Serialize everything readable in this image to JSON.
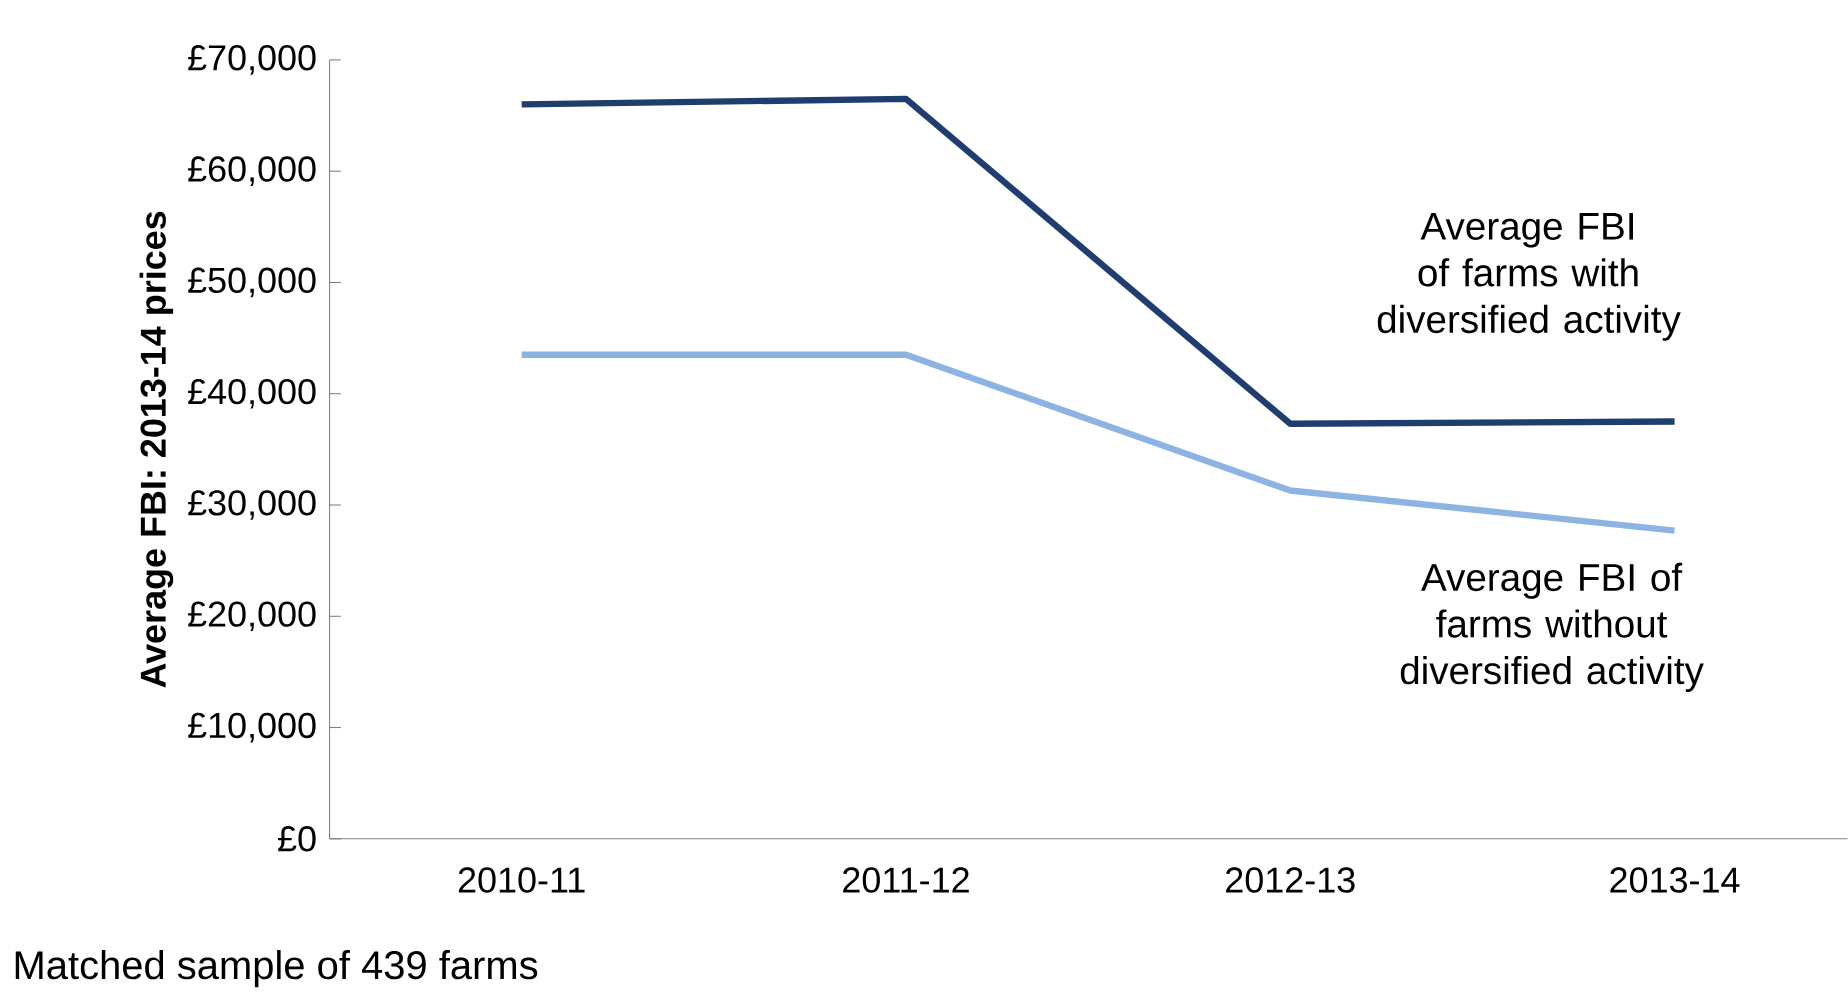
{
  "chart_data": {
    "type": "line",
    "ylabel": "Average FBI: 2013-14 prices",
    "categories": [
      "2010-11",
      "2011-12",
      "2012-13",
      "2013-14"
    ],
    "series": [
      {
        "name": "Average FBI of farms with diversified activity",
        "color": "#1f3d6e",
        "values": [
          66000,
          66500,
          37300,
          37500
        ]
      },
      {
        "name": "Average FBI of farms without diversified activity",
        "color": "#8db3e2",
        "values": [
          43500,
          43500,
          31300,
          27700
        ]
      }
    ],
    "ylim": [
      0,
      70000
    ],
    "yticks": [
      {
        "value": 0,
        "label": "£0"
      },
      {
        "value": 10000,
        "label": "£10,000"
      },
      {
        "value": 20000,
        "label": "£20,000"
      },
      {
        "value": 30000,
        "label": "£30,000"
      },
      {
        "value": 40000,
        "label": "£40,000"
      },
      {
        "value": 50000,
        "label": "£50,000"
      },
      {
        "value": 60000,
        "label": "£60,000"
      },
      {
        "value": 70000,
        "label": "£70,000"
      }
    ],
    "grid": false,
    "marker": "none",
    "line_style": "solid",
    "annotations": [
      "Matched sample of 439 farms"
    ]
  }
}
